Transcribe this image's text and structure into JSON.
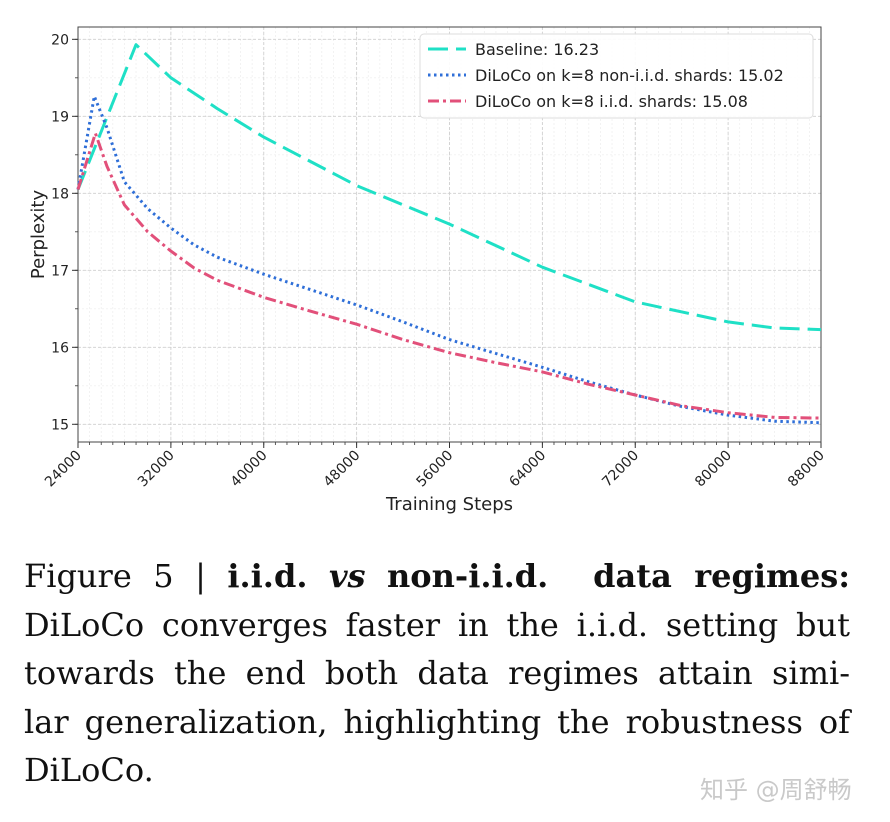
{
  "chart_data": {
    "type": "line",
    "title": "",
    "xlabel": "Training Steps",
    "ylabel": "Perplexity",
    "xlim": [
      24000,
      88000
    ],
    "ylim": [
      14.77,
      20.16
    ],
    "xticks": [
      "24000",
      "32000",
      "40000",
      "48000",
      "56000",
      "64000",
      "72000",
      "80000",
      "88000"
    ],
    "yticks": [
      "15",
      "16",
      "17",
      "18",
      "19",
      "20"
    ],
    "grid": true,
    "legend_position": "top-right",
    "series": [
      {
        "name": "Baseline: 16.23",
        "color": "#1fe0c6",
        "style": "dashed",
        "x": [
          24000,
          29000,
          32000,
          36000,
          40000,
          48000,
          56000,
          64000,
          72000,
          80000,
          84000,
          88000
        ],
        "y": [
          18.05,
          19.93,
          19.5,
          19.1,
          18.73,
          18.1,
          17.6,
          17.04,
          16.59,
          16.33,
          16.25,
          16.23
        ]
      },
      {
        "name": "DiLoCo on k=8 non-i.i.d. shards: 15.02",
        "color": "#2f6fd8",
        "style": "dotted",
        "x": [
          24000,
          25400,
          26500,
          28000,
          30000,
          32000,
          34000,
          36000,
          40000,
          44000,
          48000,
          52000,
          56000,
          60000,
          64000,
          68000,
          72000,
          76000,
          80000,
          84000,
          88000
        ],
        "y": [
          18.05,
          19.26,
          18.85,
          18.15,
          17.8,
          17.55,
          17.33,
          17.17,
          16.95,
          16.75,
          16.55,
          16.33,
          16.1,
          15.92,
          15.74,
          15.55,
          15.38,
          15.23,
          15.12,
          15.04,
          15.02
        ]
      },
      {
        "name": "DiLoCo on k=8 i.i.d. shards: 15.08",
        "color": "#e2507a",
        "style": "dashdot",
        "x": [
          24000,
          25500,
          26500,
          28000,
          30000,
          32000,
          34000,
          36000,
          40000,
          44000,
          48000,
          52000,
          56000,
          60000,
          64000,
          68000,
          72000,
          76000,
          80000,
          84000,
          88000
        ],
        "y": [
          18.05,
          18.78,
          18.35,
          17.85,
          17.5,
          17.25,
          17.03,
          16.87,
          16.65,
          16.47,
          16.3,
          16.1,
          15.93,
          15.8,
          15.68,
          15.52,
          15.38,
          15.24,
          15.15,
          15.09,
          15.08
        ]
      }
    ]
  },
  "caption": {
    "label": "Figure 5 |",
    "title_a": "i.i.d.",
    "title_vs": "vs",
    "title_b": "non-i.i.d.  data regimes",
    "colon": ":",
    "lines": [
      "DiLoCo converges faster in the i.i.d. setting but",
      "towards the end both data regimes attain simi-",
      "lar generalization, highlighting the robustness of",
      "DiLoCo."
    ]
  },
  "watermark": "知乎 @周舒畅"
}
